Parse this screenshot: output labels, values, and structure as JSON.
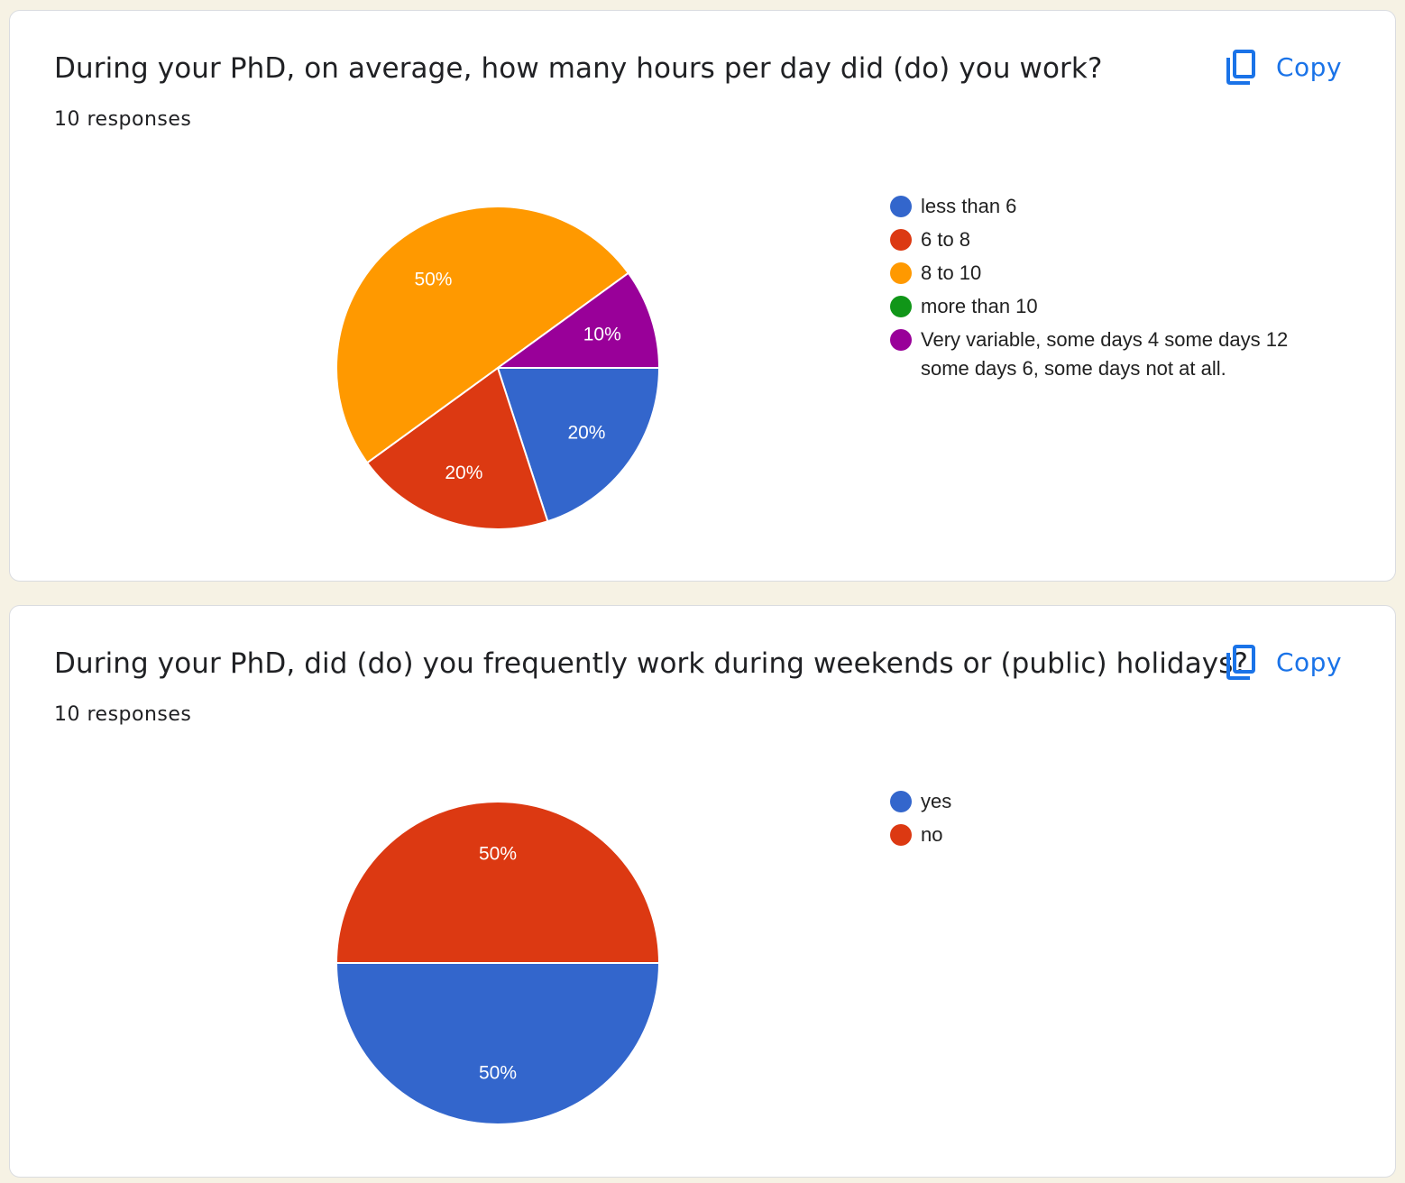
{
  "copy_label": "Copy",
  "colors": {
    "blue": "#3366cc",
    "red": "#dc3912",
    "orange": "#ff9900",
    "green": "#109618",
    "purple": "#990099",
    "accent": "#1a73e8"
  },
  "cards": [
    {
      "question": "During your PhD, on average, how many hours per day did (do) you work?",
      "responses": "10 responses"
    },
    {
      "question": "During your PhD, did (do) you frequently work during weekends or (public) holidays?",
      "responses": "10 responses"
    }
  ],
  "chart_data": [
    {
      "type": "pie",
      "categories": [
        "less than 6",
        "6 to 8",
        "8 to 10",
        "more than 10",
        "Very variable, some days 4 some days 12 some days 6, some days not at all."
      ],
      "values": [
        20,
        20,
        50,
        0,
        10
      ],
      "labels": [
        "20%",
        "20%",
        "50%",
        "",
        "10%"
      ],
      "colors": [
        "#3366cc",
        "#dc3912",
        "#ff9900",
        "#109618",
        "#990099"
      ],
      "legend": "right"
    },
    {
      "type": "pie",
      "categories": [
        "yes",
        "no"
      ],
      "values": [
        50,
        50
      ],
      "labels": [
        "50%",
        "50%"
      ],
      "colors": [
        "#3366cc",
        "#dc3912"
      ],
      "legend": "right"
    }
  ]
}
